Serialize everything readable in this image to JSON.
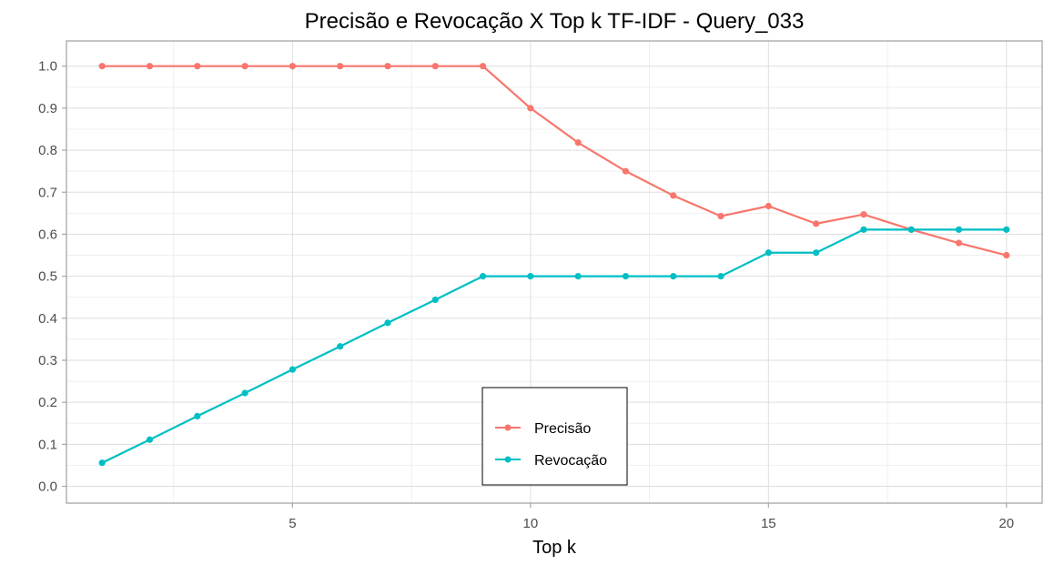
{
  "chart_data": {
    "type": "line",
    "title": "Precisão e Revocação X Top k TF-IDF - Query_033",
    "xlabel": "Top k",
    "ylabel": "",
    "x": [
      1,
      2,
      3,
      4,
      5,
      6,
      7,
      8,
      9,
      10,
      11,
      12,
      13,
      14,
      15,
      16,
      17,
      18,
      19,
      20
    ],
    "xlim": [
      0.25,
      20.75
    ],
    "ylim": [
      -0.04,
      1.06
    ],
    "x_ticks": [
      "5",
      "10",
      "15",
      "20"
    ],
    "y_ticks": [
      "0.0",
      "0.1",
      "0.2",
      "0.3",
      "0.4",
      "0.5",
      "0.6",
      "0.7",
      "0.8",
      "0.9",
      "1.0"
    ],
    "grid": true,
    "legend_position": "bottom-center",
    "series": [
      {
        "name": "Precisão",
        "color": "#F8766D",
        "values": [
          1.0,
          1.0,
          1.0,
          1.0,
          1.0,
          1.0,
          1.0,
          1.0,
          1.0,
          0.9,
          0.818,
          0.75,
          0.692,
          0.643,
          0.667,
          0.625,
          0.647,
          0.611,
          0.579,
          0.55
        ]
      },
      {
        "name": "Revocação",
        "color": "#00BFC4",
        "values": [
          0.056,
          0.111,
          0.167,
          0.222,
          0.278,
          0.333,
          0.389,
          0.444,
          0.5,
          0.5,
          0.5,
          0.5,
          0.5,
          0.5,
          0.556,
          0.556,
          0.611,
          0.611,
          0.611,
          0.611
        ]
      }
    ]
  }
}
